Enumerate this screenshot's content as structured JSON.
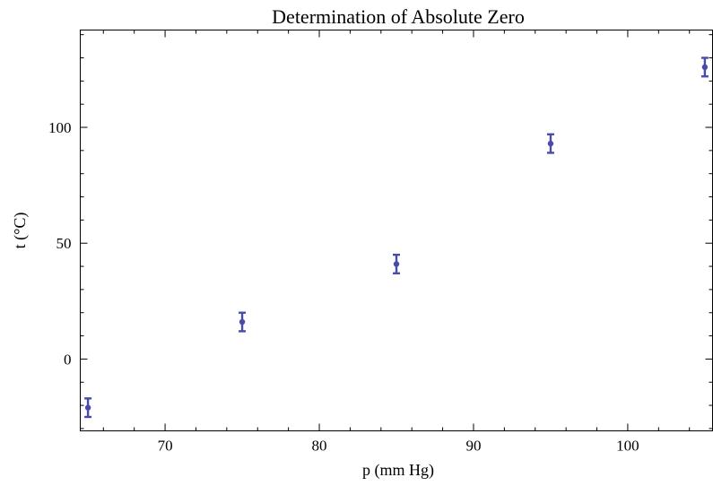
{
  "chart_data": {
    "type": "scatter",
    "title": "Determination of Absolute Zero",
    "xlabel": "p (mm Hg)",
    "ylabel": "t (°C)",
    "xlim": [
      64.5,
      105.5
    ],
    "ylim": [
      -31,
      142
    ],
    "x_ticks": [
      70,
      80,
      90,
      100
    ],
    "y_ticks": [
      0,
      50,
      100
    ],
    "x_minor_step": 2,
    "y_minor_step": 10,
    "grid": false,
    "error_bars": true,
    "series": [
      {
        "color": "#4a4aa8",
        "points": [
          {
            "x": 65,
            "y": -21,
            "err": 4
          },
          {
            "x": 75,
            "y": 16,
            "err": 4
          },
          {
            "x": 85,
            "y": 41,
            "err": 4
          },
          {
            "x": 95,
            "y": 93,
            "err": 4
          },
          {
            "x": 105,
            "y": 126,
            "err": 4
          }
        ]
      }
    ]
  }
}
